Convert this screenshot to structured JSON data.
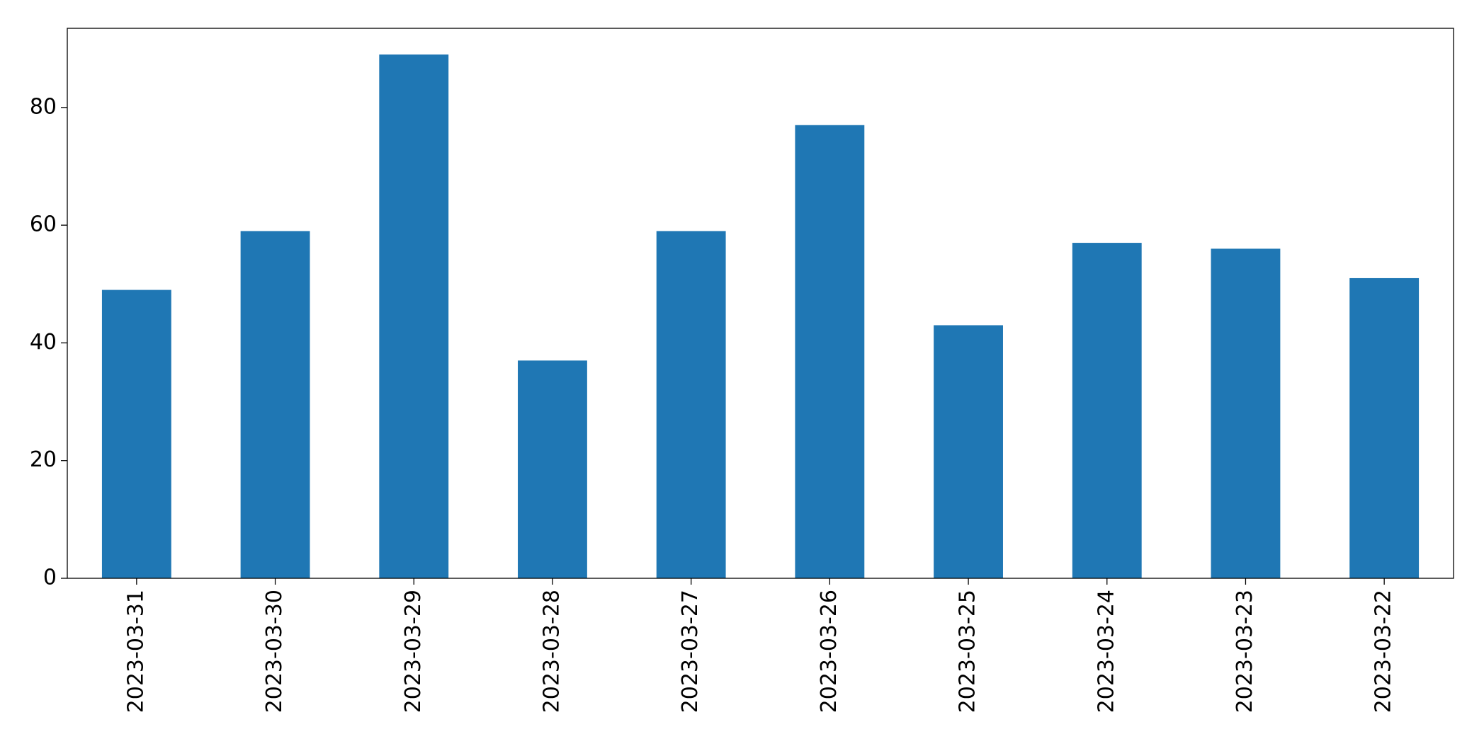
{
  "chart_data": {
    "type": "bar",
    "categories": [
      "2023-03-31",
      "2023-03-30",
      "2023-03-29",
      "2023-03-28",
      "2023-03-27",
      "2023-03-26",
      "2023-03-25",
      "2023-03-24",
      "2023-03-23",
      "2023-03-22"
    ],
    "values": [
      49,
      59,
      89,
      37,
      59,
      77,
      43,
      57,
      56,
      51
    ],
    "color": "#1f77b4",
    "ylim": [
      0,
      93.45
    ],
    "yticks": [
      0,
      20,
      40,
      60,
      80
    ],
    "grid": false
  }
}
